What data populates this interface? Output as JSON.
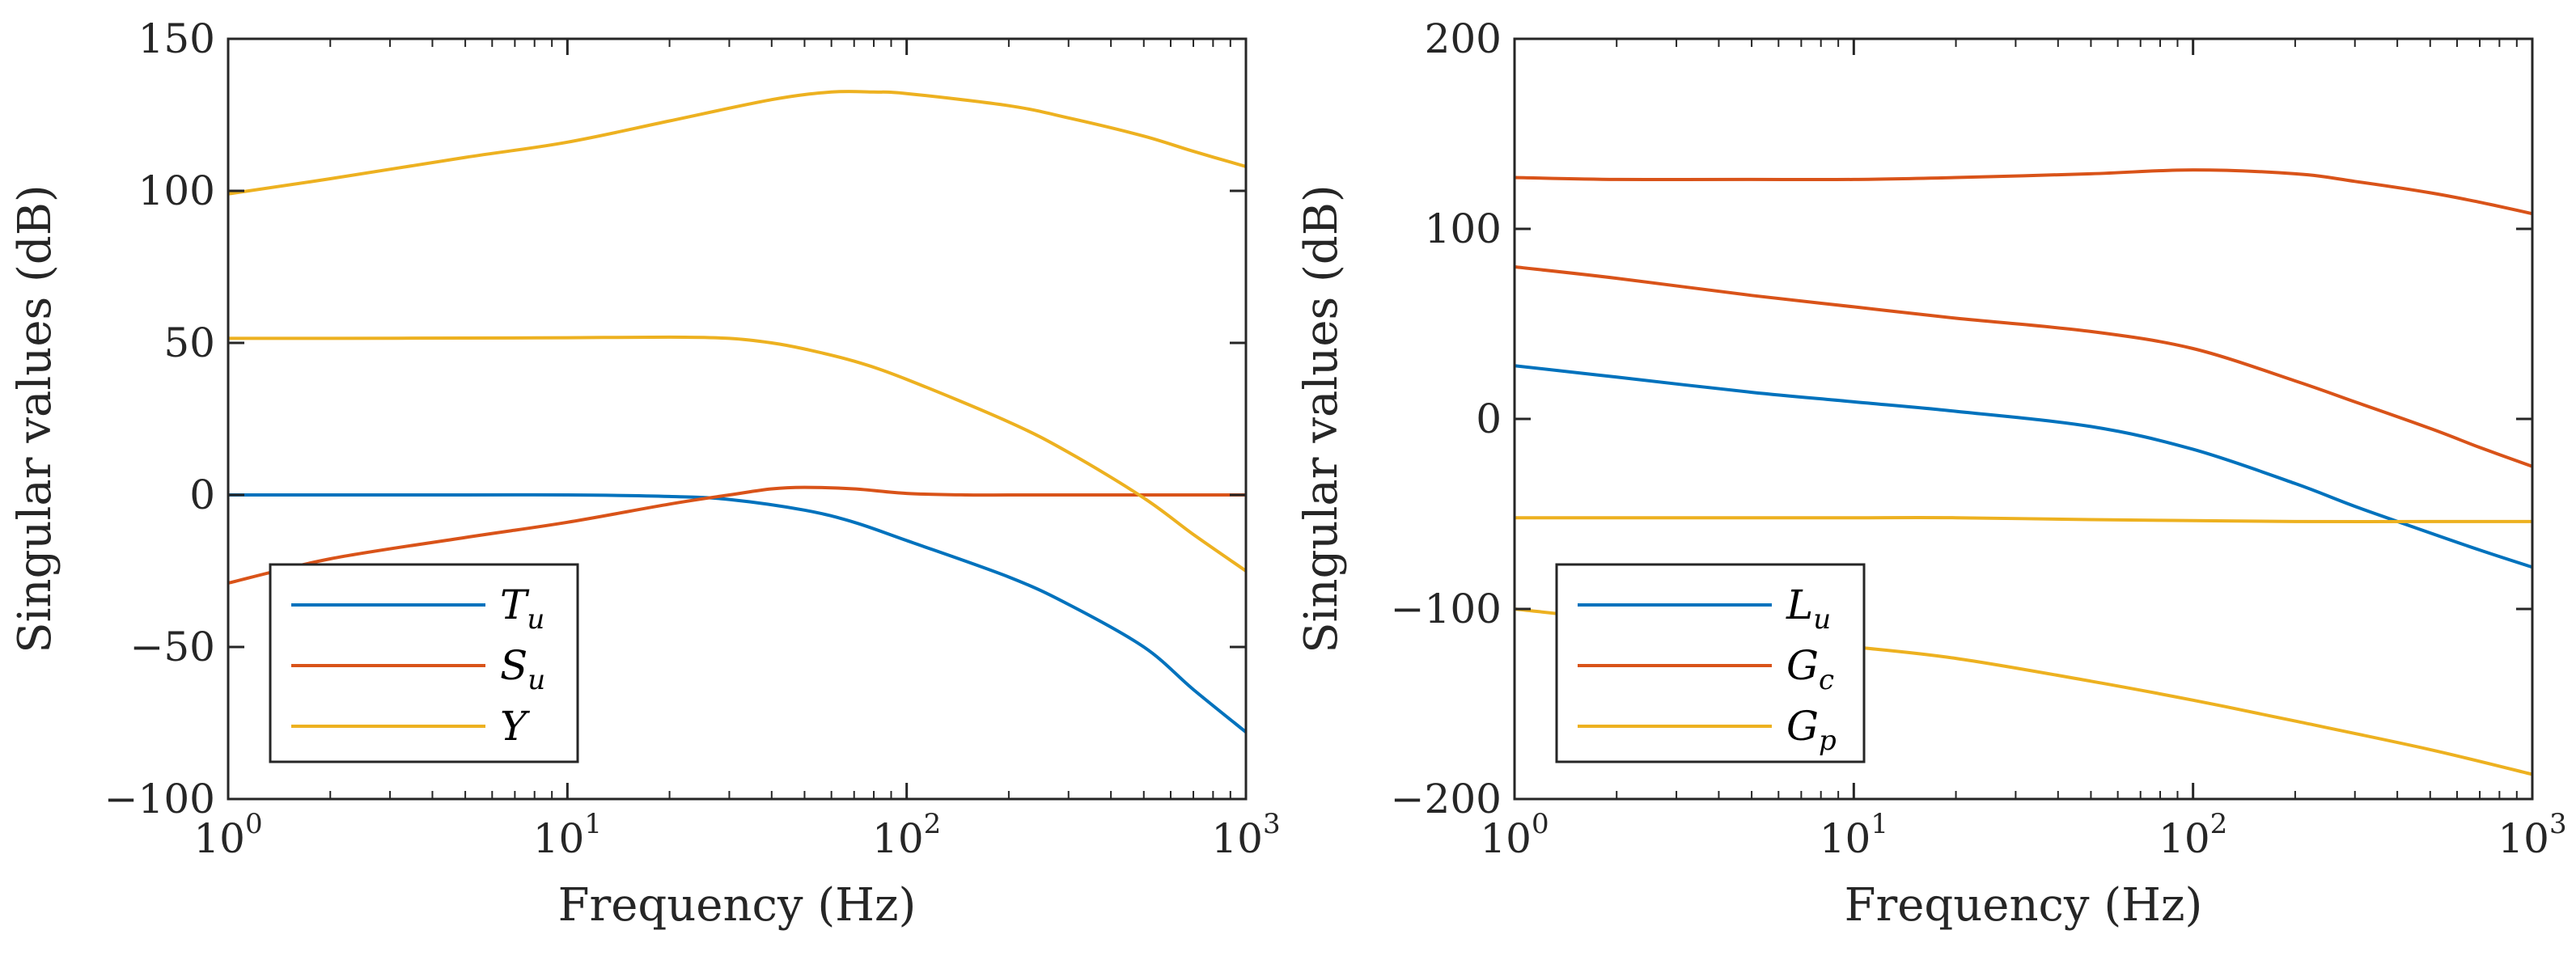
{
  "chart_data": [
    {
      "type": "line",
      "xscale": "log",
      "xlim": [
        1,
        1000
      ],
      "ylim": [
        -100,
        150
      ],
      "yticks": [
        -100,
        -50,
        0,
        50,
        100,
        150
      ],
      "ytick_labels": [
        "−100",
        "−50",
        "0",
        "50",
        "100",
        "150"
      ],
      "xtick_exponents": [
        "0",
        "1",
        "2",
        "3"
      ],
      "xtick_base": "10",
      "xlabel": "Frequency (Hz)",
      "ylabel": "Singular values (dB)",
      "legend_position": "bottom-left",
      "series": [
        {
          "name": "T_u",
          "label_main": "T",
          "label_sub": "u",
          "color": "#0072BD",
          "x": [
            1,
            2,
            5,
            10,
            20,
            30,
            50,
            70,
            100,
            200,
            300,
            500,
            700,
            1000
          ],
          "values": [
            0,
            0,
            0,
            0,
            -0.5,
            -1.5,
            -5,
            -9,
            -15,
            -27,
            -36,
            -50,
            -64,
            -78
          ]
        },
        {
          "name": "S_u",
          "label_main": "S",
          "label_sub": "u",
          "color": "#D95319",
          "x": [
            1,
            2,
            5,
            10,
            20,
            30,
            40,
            50,
            70,
            100,
            150,
            200,
            300,
            500,
            1000
          ],
          "values": [
            -29,
            -21,
            -14,
            -9,
            -3,
            0,
            2,
            2.5,
            2,
            0.5,
            0,
            0,
            0,
            0,
            0
          ]
        },
        {
          "name": "Y",
          "label_main": "Y",
          "label_sub": "",
          "color": "#EDB120",
          "x": [
            1,
            2,
            5,
            10,
            20,
            40,
            60,
            80,
            100,
            200,
            300,
            500,
            700,
            1000
          ],
          "values": [
            99,
            104,
            111,
            116,
            123,
            130,
            132.5,
            132.5,
            132,
            128,
            124,
            118,
            113,
            108
          ]
        },
        {
          "name": "Y_lower",
          "label_main": "",
          "label_sub": "",
          "color": "#EDB120",
          "x": [
            1,
            2,
            5,
            10,
            20,
            30,
            40,
            50,
            70,
            100,
            200,
            300,
            500,
            700,
            1000
          ],
          "values": [
            51.5,
            51.5,
            51.6,
            51.7,
            51.9,
            51.5,
            50,
            48,
            44,
            38,
            24,
            14,
            -1,
            -13,
            -25
          ]
        }
      ]
    },
    {
      "type": "line",
      "xscale": "log",
      "xlim": [
        1,
        1000
      ],
      "ylim": [
        -200,
        200
      ],
      "yticks": [
        -200,
        -100,
        0,
        100,
        200
      ],
      "ytick_labels": [
        "−200",
        "−100",
        "0",
        "100",
        "200"
      ],
      "xtick_exponents": [
        "0",
        "1",
        "2",
        "3"
      ],
      "xtick_base": "10",
      "xlabel": "Frequency (Hz)",
      "ylabel": "Singular values (dB)",
      "legend_position": "bottom-left",
      "series": [
        {
          "name": "L_u",
          "label_main": "L",
          "label_sub": "u",
          "color": "#0072BD",
          "x": [
            1,
            2,
            5,
            10,
            20,
            50,
            100,
            200,
            300,
            500,
            700,
            1000
          ],
          "values": [
            28,
            22,
            14,
            9,
            4,
            -4,
            -16,
            -34,
            -46,
            -60,
            -69,
            -78
          ]
        },
        {
          "name": "G_c",
          "label_main": "G",
          "label_sub": "c",
          "color": "#D95319",
          "x": [
            1,
            2,
            5,
            10,
            20,
            50,
            100,
            200,
            300,
            500,
            700,
            1000
          ],
          "values": [
            80,
            74,
            65,
            59,
            53,
            46,
            37,
            20,
            9,
            -5,
            -15,
            -25
          ]
        },
        {
          "name": "G_c_upper",
          "label_main": "",
          "label_sub": "",
          "color": "#D95319",
          "x": [
            1,
            2,
            5,
            10,
            20,
            50,
            100,
            200,
            300,
            500,
            700,
            1000
          ],
          "values": [
            127,
            126,
            126,
            126,
            127,
            129,
            131,
            129,
            125,
            119,
            114,
            108
          ]
        },
        {
          "name": "G_p",
          "label_main": "G",
          "label_sub": "p",
          "color": "#EDB120",
          "x": [
            1,
            2,
            5,
            10,
            20,
            50,
            100,
            200,
            500,
            1000
          ],
          "values": [
            -52,
            -52,
            -52,
            -52,
            -52,
            -53,
            -53.5,
            -54,
            -54,
            -54
          ]
        },
        {
          "name": "G_p_lower",
          "label_main": "",
          "label_sub": "",
          "color": "#EDB120",
          "x": [
            1,
            2,
            5,
            10,
            20,
            50,
            100,
            200,
            500,
            1000
          ],
          "values": [
            -100,
            -106,
            -115,
            -120,
            -126,
            -138,
            -148,
            -159,
            -174,
            -187
          ]
        }
      ]
    }
  ]
}
